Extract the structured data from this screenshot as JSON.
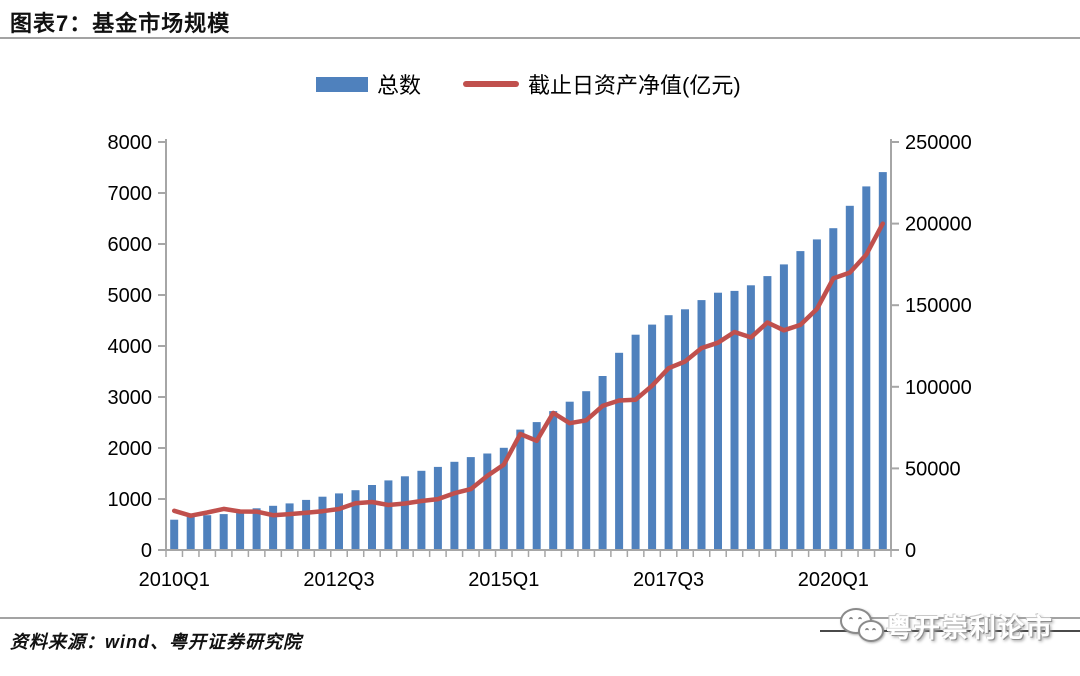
{
  "header": {
    "title": "图表7：基金市场规模"
  },
  "legend": {
    "bar_label": "总数",
    "line_label": "截止日资产净值(亿元)"
  },
  "chart_data": {
    "type": "bar",
    "note": "combo bar+line chart, dual y axes, no gridlines, legend on top",
    "categories": [
      "2010Q1",
      "2010Q2",
      "2010Q3",
      "2010Q4",
      "2011Q1",
      "2011Q2",
      "2011Q3",
      "2011Q4",
      "2012Q1",
      "2012Q2",
      "2012Q3",
      "2012Q4",
      "2013Q1",
      "2013Q2",
      "2013Q3",
      "2013Q4",
      "2014Q1",
      "2014Q2",
      "2014Q3",
      "2014Q4",
      "2015Q1",
      "2015Q2",
      "2015Q3",
      "2015Q4",
      "2016Q1",
      "2016Q2",
      "2016Q3",
      "2016Q4",
      "2017Q1",
      "2017Q2",
      "2017Q3",
      "2017Q4",
      "2018Q1",
      "2018Q2",
      "2018Q3",
      "2018Q4",
      "2019Q1",
      "2019Q2",
      "2019Q3",
      "2019Q4",
      "2020Q1",
      "2020Q2",
      "2020Q3",
      "2020Q4"
    ],
    "series": [
      {
        "name": "总数",
        "type": "bar",
        "axis": "left",
        "color": "#4F81BD",
        "values": [
          594,
          652,
          682,
          704,
          763,
          817,
          866,
          914,
          983,
          1046,
          1110,
          1173,
          1274,
          1364,
          1445,
          1553,
          1629,
          1730,
          1821,
          1893,
          2004,
          2361,
          2507,
          2723,
          2907,
          3113,
          3412,
          3867,
          4222,
          4419,
          4603,
          4720,
          4900,
          5045,
          5080,
          5190,
          5370,
          5600,
          5860,
          6090,
          6310,
          6750,
          7130,
          7410
        ]
      },
      {
        "name": "截止日资产净值(亿元)",
        "type": "line",
        "axis": "right",
        "color": "#C0504D",
        "values": [
          24000,
          21000,
          23000,
          25200,
          23600,
          23500,
          21300,
          22000,
          22800,
          23800,
          25100,
          28700,
          29400,
          27600,
          28500,
          30000,
          31200,
          34800,
          37300,
          45400,
          52300,
          71100,
          66900,
          84000,
          77700,
          79500,
          88300,
          91600,
          92100,
          100700,
          111400,
          115500,
          123700,
          127000,
          133600,
          130300,
          139400,
          134600,
          137900,
          147700,
          166400,
          170000,
          181000,
          200000
        ]
      }
    ],
    "left_axis": {
      "min": 0,
      "max": 8000,
      "step": 1000,
      "tick_labels": [
        "0",
        "1000",
        "2000",
        "3000",
        "4000",
        "5000",
        "6000",
        "7000",
        "8000"
      ]
    },
    "right_axis": {
      "min": 0,
      "max": 250000,
      "step": 50000,
      "tick_labels": [
        "0",
        "50000",
        "100000",
        "150000",
        "200000",
        "250000"
      ]
    },
    "x_tick_labels": [
      {
        "label": "2010Q1",
        "index": 0
      },
      {
        "label": "2012Q3",
        "index": 10
      },
      {
        "label": "2015Q1",
        "index": 20
      },
      {
        "label": "2017Q3",
        "index": 30
      },
      {
        "label": "2020Q1",
        "index": 40
      }
    ],
    "grid": false,
    "legend_position": "top",
    "axis_color": "#a6a6a6"
  },
  "footer": {
    "source": "资料来源：wind、粤开证券研究院"
  },
  "watermark": {
    "text": "粤开崇利论市",
    "icon": "wechat-chat-bubbles"
  }
}
